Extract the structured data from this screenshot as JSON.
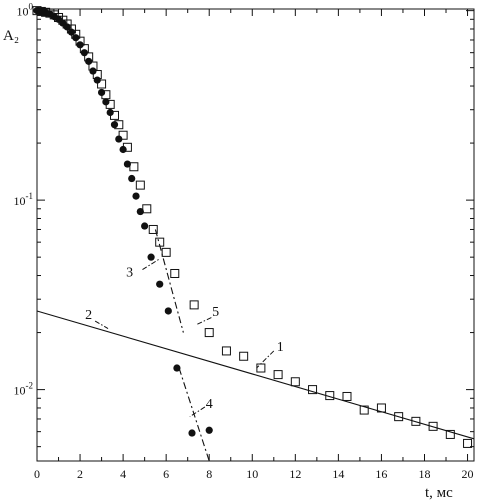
{
  "chart_data": {
    "type": "scatter",
    "title": "",
    "xlabel": "t, мс",
    "ylabel": "A₂",
    "x_scale": "linear",
    "y_scale": "log",
    "xlim": [
      0,
      20.3
    ],
    "ylim": [
      0.0042,
      1.02
    ],
    "grid": false,
    "x_ticks": [
      0,
      2,
      4,
      6,
      8,
      10,
      12,
      14,
      16,
      18,
      20
    ],
    "x_tick_labels": [
      "0",
      "2",
      "4",
      "6",
      "8",
      "10",
      "12",
      "14",
      "16",
      "18",
      "20"
    ],
    "y_ticks": [
      0.01,
      0.1,
      1
    ],
    "y_tick_labels": [
      {
        "base": "10",
        "exp": "-2"
      },
      {
        "base": "10",
        "exp": "-1"
      },
      {
        "base": "10",
        "exp": "0"
      }
    ],
    "series": [
      {
        "marker": "filled-circle",
        "x": [
          0.0,
          0.15,
          0.3,
          0.45,
          0.6,
          0.8,
          1.0,
          1.2,
          1.4,
          1.6,
          1.8,
          2.0,
          2.2,
          2.4,
          2.6,
          2.8,
          3.0,
          3.2,
          3.4,
          3.6,
          3.8,
          4.0,
          4.2,
          4.4,
          4.6,
          4.8,
          5.0,
          5.3,
          5.7,
          6.1,
          6.5,
          7.2,
          8.0
        ],
        "y": [
          1.0,
          0.99,
          0.98,
          0.97,
          0.96,
          0.93,
          0.9,
          0.86,
          0.82,
          0.77,
          0.72,
          0.66,
          0.6,
          0.54,
          0.48,
          0.43,
          0.37,
          0.33,
          0.29,
          0.25,
          0.21,
          0.185,
          0.155,
          0.13,
          0.105,
          0.087,
          0.073,
          0.05,
          0.036,
          0.026,
          0.013,
          0.0059,
          0.0061
        ]
      },
      {
        "marker": "open-square",
        "x": [
          0.0,
          0.2,
          0.4,
          0.6,
          0.8,
          1.0,
          1.2,
          1.4,
          1.6,
          1.8,
          2.0,
          2.2,
          2.4,
          2.6,
          2.8,
          3.0,
          3.2,
          3.4,
          3.6,
          3.8,
          4.0,
          4.2,
          4.5,
          4.8,
          5.1,
          5.4,
          5.7,
          6.0,
          6.4,
          7.3,
          8.0,
          8.8,
          9.6,
          10.4,
          11.2,
          12.0,
          12.8,
          13.6,
          14.4,
          15.2,
          16.0,
          16.8,
          17.6,
          18.4,
          19.2,
          20.0
        ],
        "y": [
          1.0,
          0.99,
          0.98,
          0.97,
          0.95,
          0.92,
          0.89,
          0.85,
          0.8,
          0.75,
          0.69,
          0.63,
          0.57,
          0.51,
          0.46,
          0.41,
          0.36,
          0.32,
          0.28,
          0.25,
          0.22,
          0.19,
          0.15,
          0.12,
          0.09,
          0.07,
          0.06,
          0.053,
          0.041,
          0.028,
          0.02,
          0.016,
          0.015,
          0.013,
          0.012,
          0.011,
          0.01,
          0.0093,
          0.0092,
          0.0078,
          0.008,
          0.0072,
          0.0068,
          0.0064,
          0.0058,
          0.0052
        ]
      }
    ],
    "lines": [
      {
        "style": "solid",
        "x": [
          0,
          20.3
        ],
        "y": [
          0.026,
          0.0055
        ]
      },
      {
        "style": "dash-dot",
        "x": [
          5.5,
          6.8
        ],
        "y": [
          0.07,
          0.02
        ]
      },
      {
        "style": "dash-dot",
        "x": [
          6.6,
          8.0
        ],
        "y": [
          0.013,
          0.0042
        ]
      }
    ],
    "annotations": [
      {
        "text": "1",
        "x": 11.3,
        "y": 0.017,
        "leader": {
          "x": [
            11.0,
            10.2
          ],
          "y": [
            0.016,
            0.013
          ]
        }
      },
      {
        "text": "2",
        "x": 2.4,
        "y": 0.025,
        "leader": {
          "x": [
            2.7,
            3.3
          ],
          "y": [
            0.023,
            0.021
          ]
        }
      },
      {
        "text": "3",
        "x": 4.3,
        "y": 0.042,
        "leader": {
          "x": [
            4.9,
            5.7
          ],
          "y": [
            0.043,
            0.049
          ]
        }
      },
      {
        "text": "4",
        "x": 8.0,
        "y": 0.0085,
        "leader": {
          "x": [
            7.8,
            7.1
          ],
          "y": [
            0.0081,
            0.0072
          ]
        }
      },
      {
        "text": "5",
        "x": 8.3,
        "y": 0.026,
        "leader": {
          "x": [
            8.1,
            7.4
          ],
          "y": [
            0.024,
            0.022
          ]
        }
      }
    ]
  }
}
